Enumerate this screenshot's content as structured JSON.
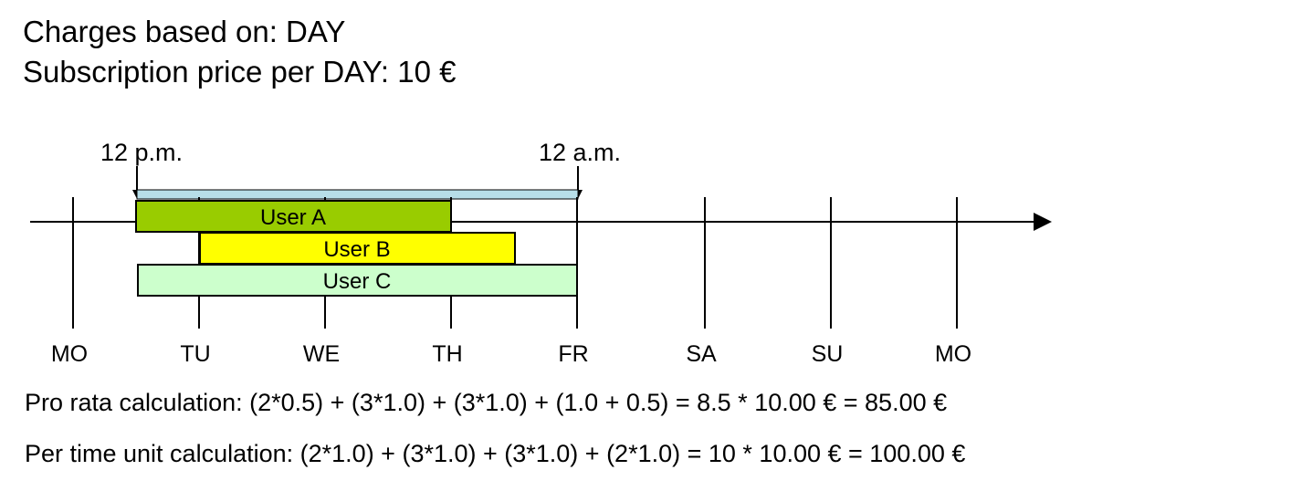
{
  "header": {
    "charges_based_on": "Charges based on: DAY",
    "subscription_price": "Subscription price per DAY: 10 €"
  },
  "markers": {
    "start": "12 p.m.",
    "end": "12 a.m."
  },
  "days": [
    "MO",
    "TU",
    "WE",
    "TH",
    "FR",
    "SA",
    "SU",
    "MO"
  ],
  "users": [
    {
      "label": "User A",
      "color": "#99cc00"
    },
    {
      "label": "User B",
      "color": "#ffff00"
    },
    {
      "label": "User C",
      "color": "#ccffcc"
    }
  ],
  "billing_period_color": "#b7dee8",
  "calculations": {
    "pro_rata": "Pro rata calculation:  (2*0.5) + (3*1.0) + (3*1.0) + (1.0 + 0.5) = 8.5 * 10.00 € = 85.00 €",
    "per_time_unit": "Per time unit calculation:  (2*1.0) + (3*1.0) + (3*1.0) + (2*1.0) = 10 * 10.00 € = 100.00 €"
  }
}
